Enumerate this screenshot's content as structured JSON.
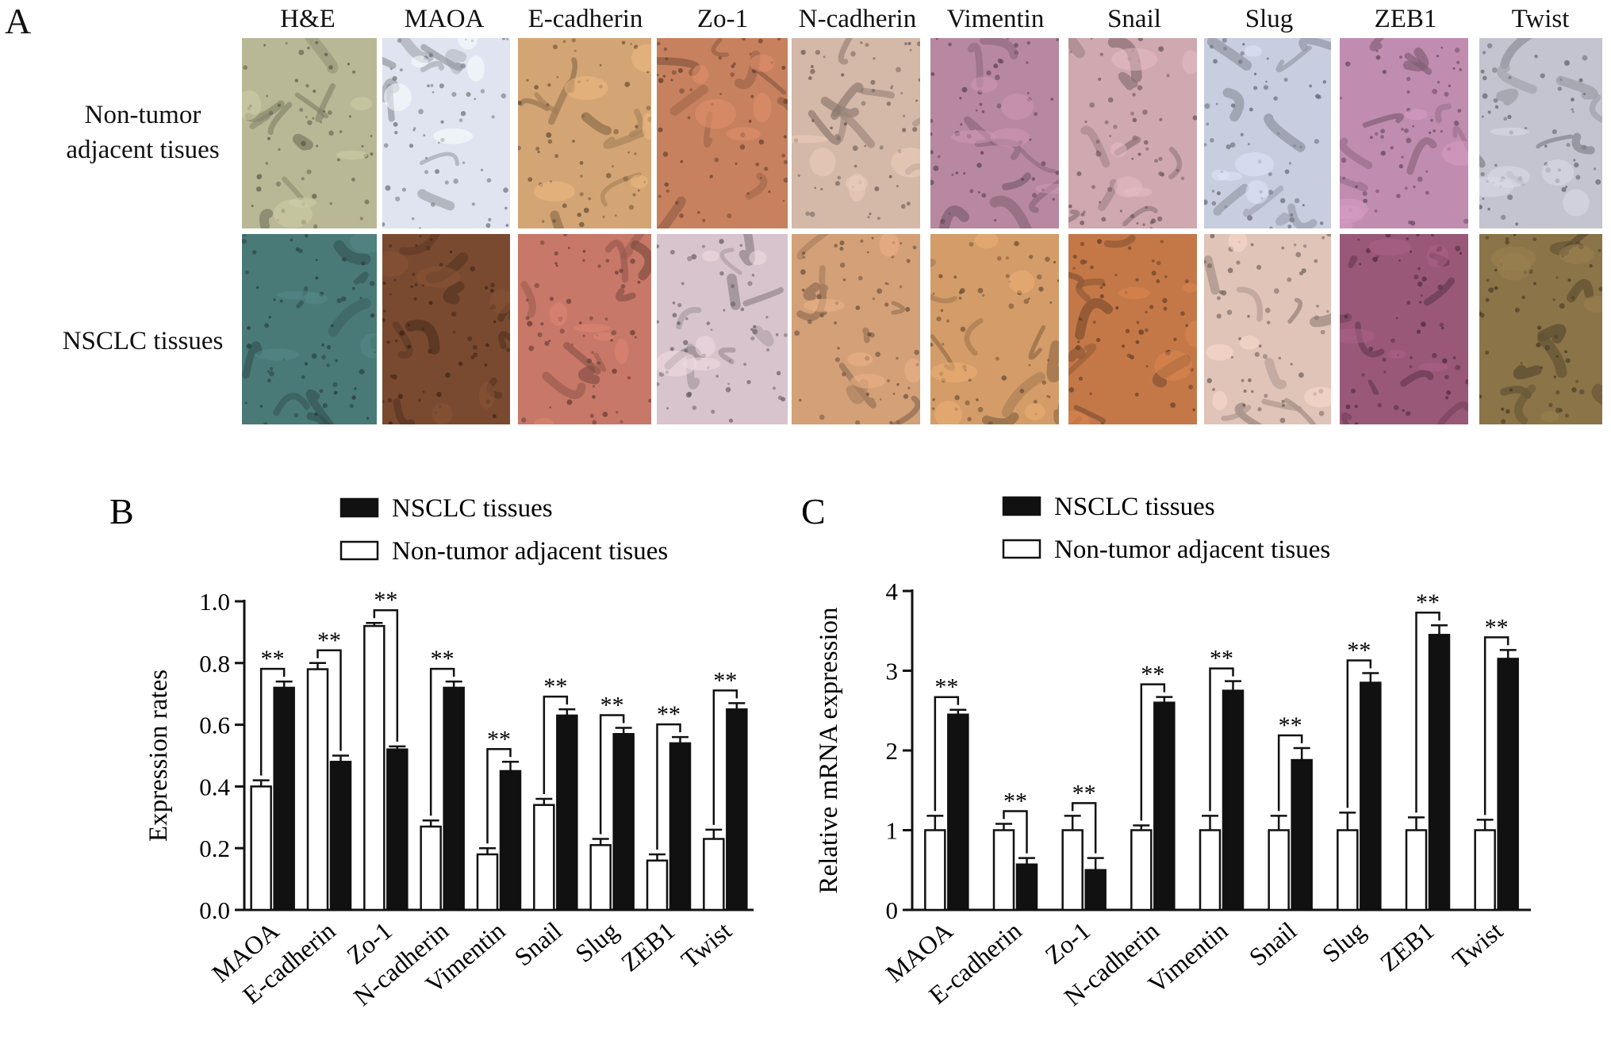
{
  "panel_a": {
    "letter": "A",
    "columns": [
      "H&E",
      "MAOA",
      "E-cadherin",
      "Zo-1",
      "N-cadherin",
      "Vimentin",
      "Snail",
      "Slug",
      "ZEB1",
      "Twist"
    ],
    "rows": [
      {
        "label_lines": [
          "Non-tumor",
          "adjacent tisues"
        ],
        "tissue_colors": [
          "#b8b896",
          "#dfe4f0",
          "#d4a574",
          "#c8815e",
          "#d4b8a8",
          "#b888a0",
          "#cfa8b0",
          "#c8cde0",
          "#c08cb0",
          "#c4c4d0"
        ]
      },
      {
        "label_lines": [
          "NSCLC tissues"
        ],
        "tissue_colors": [
          "#4a7a78",
          "#7a4a30",
          "#c87868",
          "#d8c4cc",
          "#d4a078",
          "#d49c68",
          "#c47848",
          "#e0c4b8",
          "#9a5878",
          "#8a7448"
        ]
      }
    ]
  },
  "chart_data": [
    {
      "type": "bar",
      "panel": "B",
      "categories": [
        "MAOA",
        "E-cadherin",
        "Zo-1",
        "N-cadherin",
        "Vimentin",
        "Snail",
        "Slug",
        "ZEB1",
        "Twist"
      ],
      "ylabel": "Expression rates",
      "ylim": [
        0,
        1.0
      ],
      "yticks": [
        "0.0",
        "0.2",
        "0.4",
        "0.6",
        "0.8",
        "1.0"
      ],
      "legend": [
        "NSCLC tissues",
        "Non-tumor adjacent tisues"
      ],
      "series": [
        {
          "name": "Non-tumor adjacent tisues",
          "fill": "#ffffff",
          "values": [
            0.4,
            0.78,
            0.92,
            0.27,
            0.18,
            0.34,
            0.21,
            0.16,
            0.23
          ],
          "errors": [
            0.02,
            0.02,
            0.01,
            0.02,
            0.02,
            0.02,
            0.02,
            0.02,
            0.03
          ]
        },
        {
          "name": "NSCLC tissues",
          "fill": "#111111",
          "values": [
            0.72,
            0.48,
            0.52,
            0.72,
            0.45,
            0.63,
            0.57,
            0.54,
            0.65
          ],
          "errors": [
            0.02,
            0.02,
            0.01,
            0.02,
            0.03,
            0.02,
            0.02,
            0.02,
            0.02
          ]
        }
      ],
      "significance": "**"
    },
    {
      "type": "bar",
      "panel": "C",
      "categories": [
        "MAOA",
        "E-cadherin",
        "Zo-1",
        "N-cadherin",
        "Vimentin",
        "Snail",
        "Slug",
        "ZEB1",
        "Twist"
      ],
      "ylabel": "Relative mRNA expression",
      "ylim": [
        0,
        4
      ],
      "yticks": [
        "0",
        "1",
        "2",
        "3",
        "4"
      ],
      "legend": [
        "NSCLC tissues",
        "Non-tumor adjacent tisues"
      ],
      "series": [
        {
          "name": "Non-tumor adjacent tisues",
          "fill": "#ffffff",
          "values": [
            1,
            1,
            1,
            1,
            1,
            1,
            1,
            1,
            1
          ],
          "errors": [
            0.18,
            0.08,
            0.18,
            0.06,
            0.18,
            0.18,
            0.22,
            0.16,
            0.13
          ]
        },
        {
          "name": "NSCLC tissues",
          "fill": "#111111",
          "values": [
            2.45,
            0.57,
            0.5,
            2.6,
            2.75,
            1.88,
            2.85,
            3.45,
            3.15
          ],
          "errors": [
            0.06,
            0.08,
            0.15,
            0.07,
            0.12,
            0.15,
            0.12,
            0.12,
            0.11
          ]
        }
      ],
      "significance": "**"
    }
  ]
}
